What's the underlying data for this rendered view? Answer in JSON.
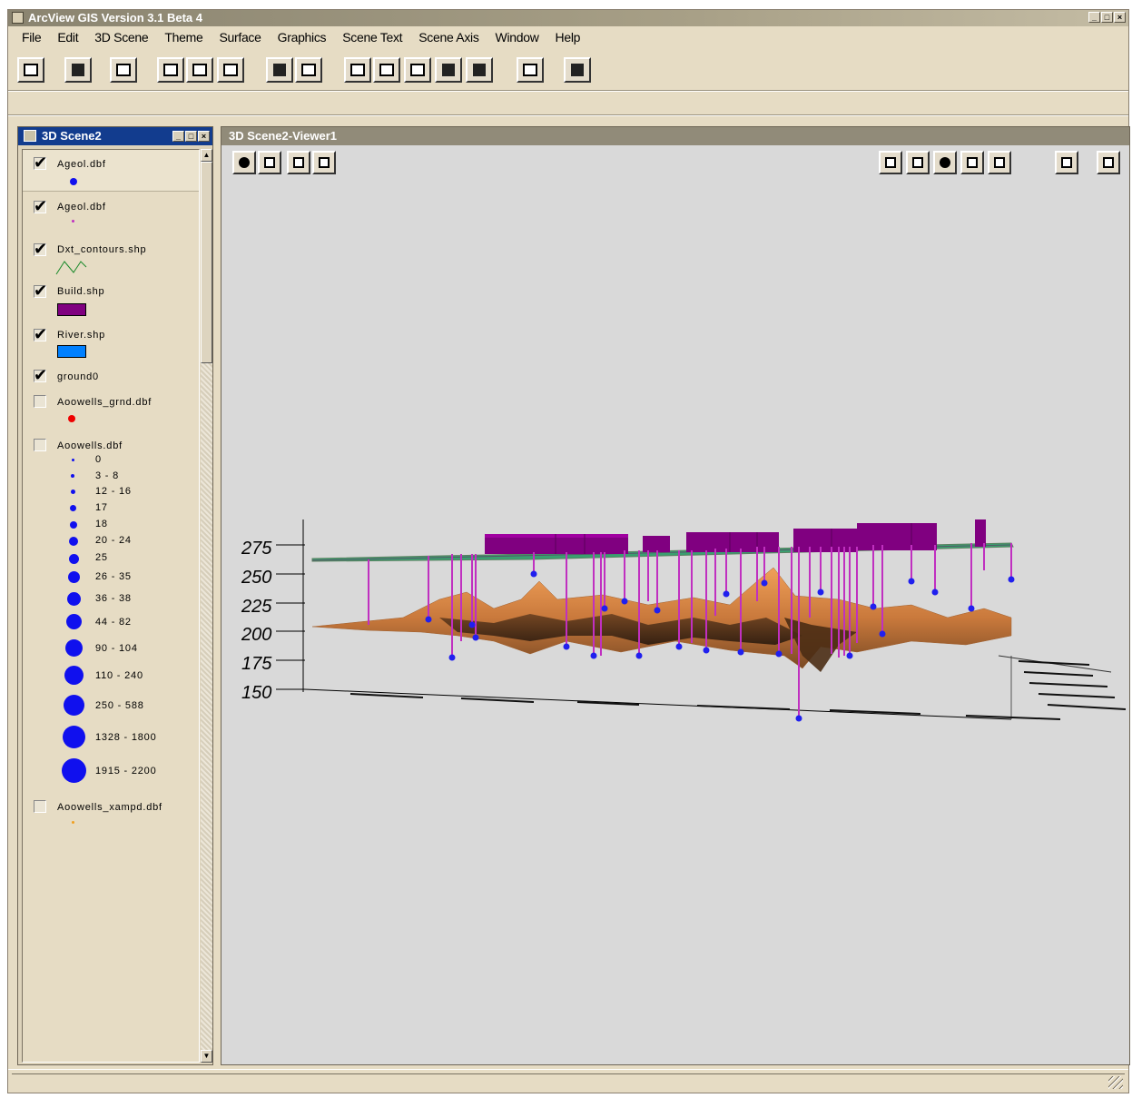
{
  "app": {
    "title": "ArcView GIS Version 3.1 Beta 4"
  },
  "menu": [
    "File",
    "Edit",
    "3D Scene",
    "Theme",
    "Surface",
    "Graphics",
    "Scene Text",
    "Scene Axis",
    "Window",
    "Help"
  ],
  "toolbar": {
    "buttons": [
      "save-icon",
      "add-theme-icon",
      "properties-icon",
      "theme-properties-icon",
      "edit-legend-icon",
      "table-icon",
      "find-icon",
      "query-icon",
      "navigate-icon",
      "pan-icon",
      "zoom-full-icon",
      "zoom-in-icon",
      "zoom-out-icon",
      "layout-icon",
      "help-icon"
    ]
  },
  "legend": {
    "title": "3D Scene2",
    "themes": [
      {
        "name": "Ageol.dbf",
        "checked": true,
        "symbol": "blue-point"
      },
      {
        "name": "Ageol.dbf",
        "checked": true,
        "symbol": "magenta-point"
      },
      {
        "name": "Dxt_contours.shp",
        "checked": true,
        "symbol": "green-line"
      },
      {
        "name": "Build.shp",
        "checked": true,
        "symbol": "purple-fill",
        "color": "#800080"
      },
      {
        "name": "River.shp",
        "checked": true,
        "symbol": "blue-fill",
        "color": "#0080ff"
      },
      {
        "name": "ground0",
        "checked": true,
        "symbol": "none"
      },
      {
        "name": "Aoowells_grnd.dbf",
        "checked": false,
        "symbol": "red-point",
        "color": "#ee0000"
      },
      {
        "name": "Aoowells.dbf",
        "checked": false,
        "symbol": "graduated-points"
      },
      {
        "name": "Aoowells_xampd.dbf",
        "checked": false,
        "symbol": "orange-point",
        "color": "#f0a020"
      }
    ],
    "classes": [
      "0",
      "3 - 8",
      "12 - 16",
      "17",
      "18",
      "20 - 24",
      "25",
      "26 - 35",
      "36 - 38",
      "44 - 82",
      "90 - 104",
      "110 - 240",
      "250 - 588",
      "1328 - 1800",
      "1915 - 2200"
    ]
  },
  "viewer": {
    "title": "3D Scene2-Viewer1",
    "axis_ticks": [
      "275",
      "250",
      "225",
      "200",
      "175",
      "150"
    ]
  },
  "colors": {
    "buildings": "#800080",
    "wells": "#c030c0",
    "well_points": "#2020ee",
    "surface": "#d8894a",
    "contour_plane": "#3aa070"
  }
}
